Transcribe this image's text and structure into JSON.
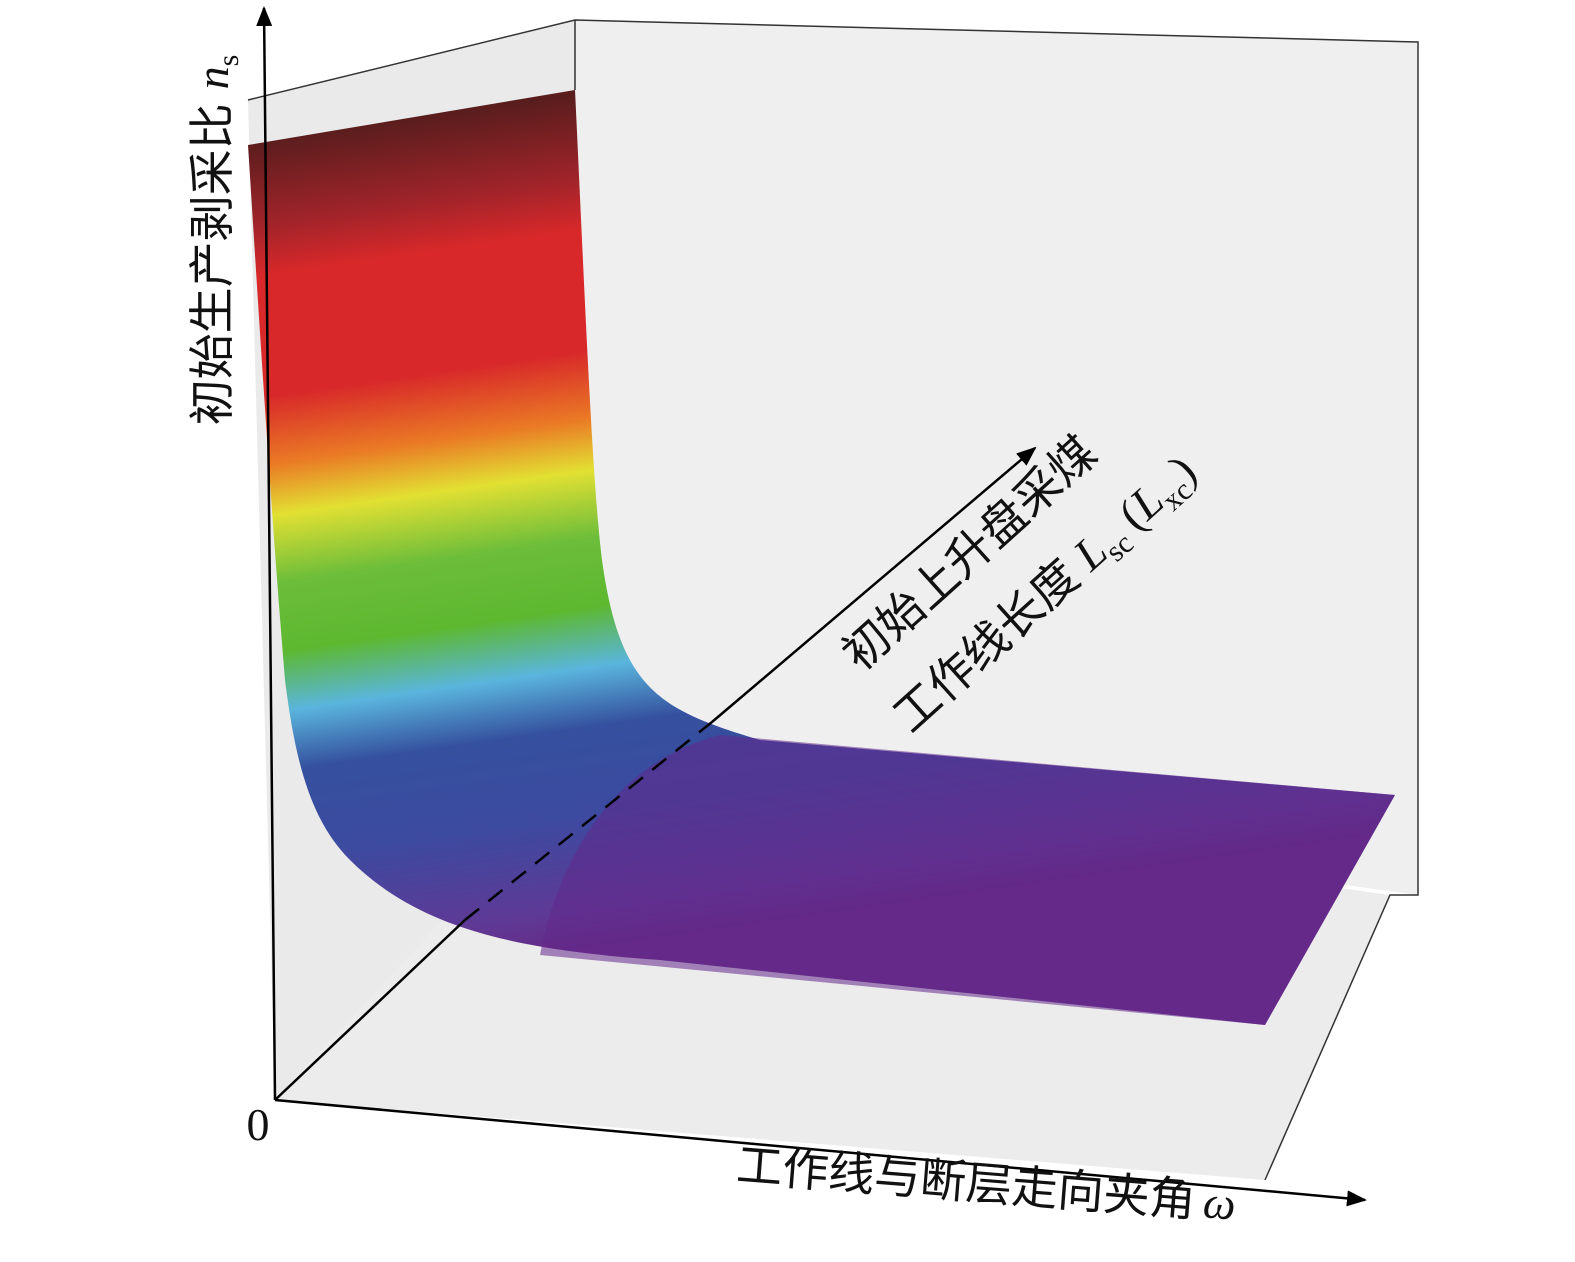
{
  "axes": {
    "origin": "0",
    "vertical": {
      "label": "初始生产剥采比",
      "symbol": "n",
      "subscript": "s"
    },
    "depth": {
      "line1": "初始上升盘采煤",
      "line2": "工作线长度",
      "symbol": "L",
      "subscript": "sc",
      "open": "(",
      "alt_symbol": "L",
      "alt_subscript": "xc",
      "close": ")"
    },
    "horizontal": {
      "label": "工作线与断层走向夹角",
      "symbol": "ω"
    }
  }
}
